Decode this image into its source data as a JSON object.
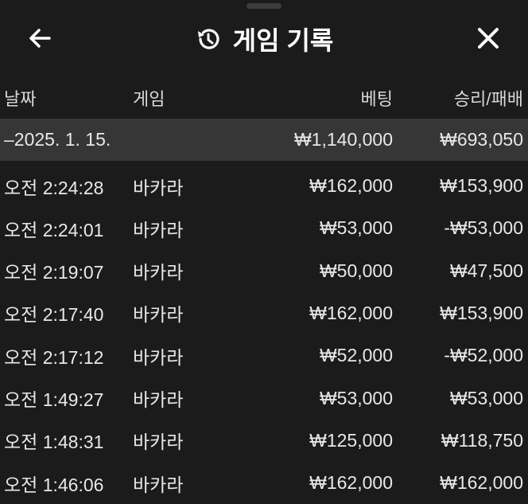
{
  "header": {
    "title": "게임 기록",
    "back_icon": "arrow-left-icon",
    "history_icon": "history-icon",
    "close_icon": "close-icon"
  },
  "columns": [
    "날짜",
    "게임",
    "베팅",
    "승리/패배"
  ],
  "group": {
    "date": "–2025. 1. 15.",
    "bet_total": "₩1,140,000",
    "result_total": "₩693,050"
  },
  "rows": [
    {
      "time": "오전 2:24:28",
      "game": "바카라",
      "bet": "₩162,000",
      "result": "₩153,900"
    },
    {
      "time": "오전 2:24:01",
      "game": "바카라",
      "bet": "₩53,000",
      "result": "-₩53,000"
    },
    {
      "time": "오전 2:19:07",
      "game": "바카라",
      "bet": "₩50,000",
      "result": "₩47,500"
    },
    {
      "time": "오전 2:17:40",
      "game": "바카라",
      "bet": "₩162,000",
      "result": "₩153,900"
    },
    {
      "time": "오전 2:17:12",
      "game": "바카라",
      "bet": "₩52,000",
      "result": "-₩52,000"
    },
    {
      "time": "오전 1:49:27",
      "game": "바카라",
      "bet": "₩53,000",
      "result": "₩53,000"
    },
    {
      "time": "오전 1:48:31",
      "game": "바카라",
      "bet": "₩125,000",
      "result": "₩118,750"
    },
    {
      "time": "오전 1:46:06",
      "game": "바카라",
      "bet": "₩162,000",
      "result": "₩162,000"
    }
  ]
}
